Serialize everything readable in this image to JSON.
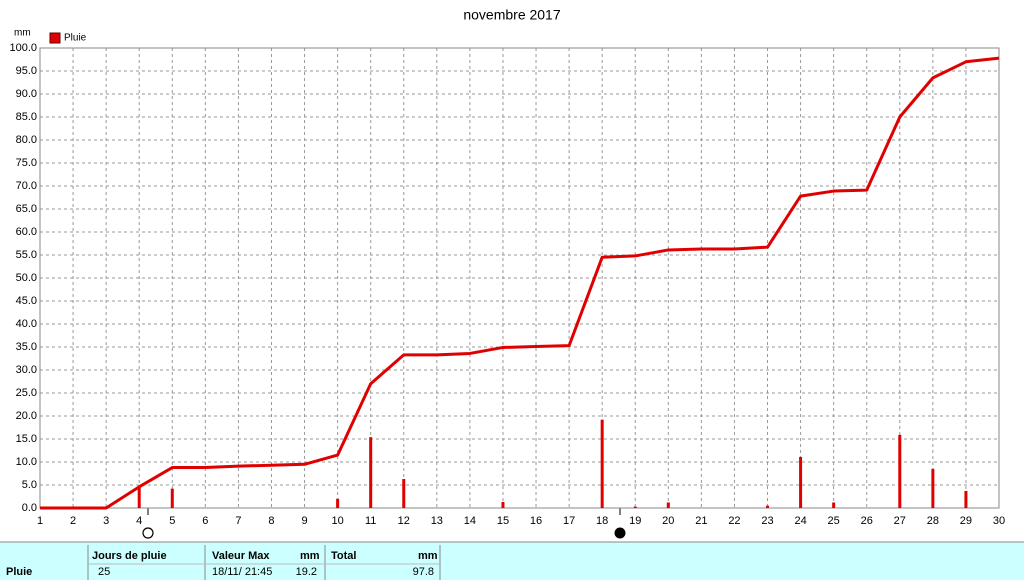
{
  "chart_data": {
    "type": "bar_line",
    "title": "novembre 2017",
    "y_label": "mm",
    "x": [
      1,
      2,
      3,
      4,
      5,
      6,
      7,
      8,
      9,
      10,
      11,
      12,
      13,
      14,
      15,
      16,
      17,
      18,
      19,
      20,
      21,
      22,
      23,
      24,
      25,
      26,
      27,
      28,
      29,
      30
    ],
    "xlim": [
      1,
      30
    ],
    "xticks": [
      1,
      2,
      3,
      4,
      5,
      6,
      7,
      8,
      9,
      10,
      11,
      12,
      13,
      14,
      15,
      16,
      17,
      18,
      19,
      20,
      21,
      22,
      23,
      24,
      25,
      26,
      27,
      28,
      29,
      30
    ],
    "ylim": [
      0,
      100
    ],
    "yticks": [
      {
        "value": 0,
        "label": "0.0"
      },
      {
        "value": 5,
        "label": "5.0"
      },
      {
        "value": 10,
        "label": "10.0"
      },
      {
        "value": 15,
        "label": "15.0"
      },
      {
        "value": 20,
        "label": "20.0"
      },
      {
        "value": 25,
        "label": "25.0"
      },
      {
        "value": 30,
        "label": "30.0"
      },
      {
        "value": 35,
        "label": "35.0"
      },
      {
        "value": 40,
        "label": "40.0"
      },
      {
        "value": 45,
        "label": "45.0"
      },
      {
        "value": 50,
        "label": "50.0"
      },
      {
        "value": 55,
        "label": "55.0"
      },
      {
        "value": 60,
        "label": "60.0"
      },
      {
        "value": 65,
        "label": "65.0"
      },
      {
        "value": 70,
        "label": "70.0"
      },
      {
        "value": 75,
        "label": "75.0"
      },
      {
        "value": 80,
        "label": "80.0"
      },
      {
        "value": 85,
        "label": "85.0"
      },
      {
        "value": 90,
        "label": "90.0"
      },
      {
        "value": 95,
        "label": "95.0"
      },
      {
        "value": 100,
        "label": "100.0"
      }
    ],
    "grid": true,
    "series": [
      {
        "name": "Pluie",
        "color": "#e00000",
        "kind": "bar",
        "values": [
          0,
          0,
          0,
          4.6,
          4.2,
          0,
          0,
          0,
          0,
          2,
          15.4,
          6.3,
          0,
          0,
          1.3,
          0,
          0,
          19.2,
          0.3,
          1.2,
          0,
          0,
          0.5,
          11.1,
          1.2,
          0,
          15.9,
          8.5,
          3.7,
          0
        ]
      },
      {
        "color": "#e00000",
        "kind": "line",
        "values": [
          0,
          0,
          0,
          4.6,
          8.8,
          8.8,
          9.1,
          9.3,
          9.5,
          11.5,
          27,
          33.3,
          33.3,
          33.6,
          34.9,
          35.1,
          35.3,
          54.5,
          54.8,
          56.1,
          56.3,
          56.3,
          56.7,
          67.8,
          68.9,
          69.1,
          85,
          93.5,
          97.0,
          97.8
        ]
      }
    ]
  },
  "summary_table": {
    "headers": [
      "Jours de pluie",
      "Valeur Max",
      "mm",
      "Total",
      "mm"
    ],
    "rows": [
      [
        "Pluie",
        25,
        "18/11/ 21:45",
        19.2,
        97.8
      ]
    ]
  }
}
